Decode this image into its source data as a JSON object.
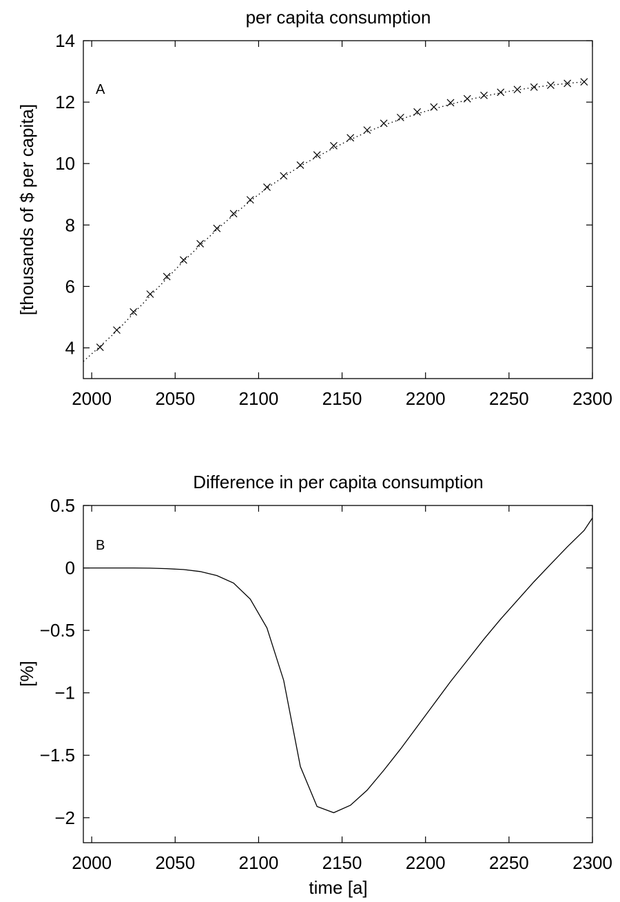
{
  "chart_data": [
    {
      "type": "scatter",
      "panel_letter": "A",
      "title": "per capita consumption",
      "xlabel": "",
      "ylabel": "[thousands of $ per capita]",
      "xlim": [
        1995,
        2300
      ],
      "ylim": [
        3,
        14
      ],
      "xticks": [
        2000,
        2050,
        2100,
        2150,
        2200,
        2250,
        2300
      ],
      "yticks": [
        4,
        6,
        8,
        10,
        12,
        14
      ],
      "grid": false,
      "series": [
        {
          "marker": "x",
          "x": [
            2005,
            2015,
            2025,
            2035,
            2045,
            2055,
            2065,
            2075,
            2085,
            2095,
            2105,
            2115,
            2125,
            2135,
            2145,
            2155,
            2165,
            2175,
            2185,
            2195,
            2205,
            2215,
            2225,
            2235,
            2245,
            2255,
            2265,
            2275,
            2285,
            2295
          ],
          "y": [
            4.02,
            4.58,
            5.17,
            5.75,
            6.32,
            6.86,
            7.39,
            7.89,
            8.37,
            8.82,
            9.23,
            9.6,
            9.95,
            10.28,
            10.58,
            10.84,
            11.09,
            11.31,
            11.5,
            11.68,
            11.84,
            11.98,
            12.11,
            12.22,
            12.32,
            12.41,
            12.49,
            12.55,
            12.61,
            12.66
          ]
        },
        {
          "line_style": "dotted",
          "x": [
            1995,
            2005,
            2015,
            2025,
            2035,
            2045,
            2055,
            2065,
            2075,
            2085,
            2095,
            2105,
            2115,
            2125,
            2135,
            2145,
            2155,
            2165,
            2175,
            2185,
            2195,
            2205,
            2215,
            2225,
            2235,
            2245,
            2255,
            2265,
            2275,
            2285,
            2295
          ],
          "y": [
            3.56,
            4.05,
            4.55,
            5.12,
            5.69,
            6.26,
            6.82,
            7.34,
            7.85,
            8.33,
            8.78,
            9.2,
            9.57,
            9.92,
            10.22,
            10.51,
            10.78,
            11.03,
            11.25,
            11.44,
            11.62,
            11.78,
            11.93,
            12.07,
            12.19,
            12.3,
            12.4,
            12.48,
            12.55,
            12.61,
            12.66
          ]
        }
      ]
    },
    {
      "type": "line",
      "panel_letter": "B",
      "title": "Difference in per capita consumption",
      "xlabel": "time [a]",
      "ylabel": "[%]",
      "xlim": [
        1995,
        2300
      ],
      "ylim": [
        -2.2,
        0.5
      ],
      "xticks": [
        2000,
        2050,
        2100,
        2150,
        2200,
        2250,
        2300
      ],
      "yticks": [
        0.5,
        0,
        -0.5,
        -1,
        -1.5,
        -2
      ],
      "ytick_labels": [
        "0.5",
        "0",
        "−0.5",
        "−1",
        "−1.5",
        "−2"
      ],
      "grid": false,
      "series": [
        {
          "x": [
            1995,
            2005,
            2015,
            2025,
            2035,
            2045,
            2055,
            2065,
            2075,
            2085,
            2095,
            2105,
            2115,
            2125,
            2135,
            2145,
            2155,
            2165,
            2175,
            2185,
            2195,
            2205,
            2215,
            2225,
            2235,
            2245,
            2255,
            2265,
            2275,
            2285,
            2295,
            2300
          ],
          "y": [
            0,
            0,
            0,
            0,
            -0.002,
            -0.006,
            -0.013,
            -0.029,
            -0.061,
            -0.121,
            -0.25,
            -0.48,
            -0.9,
            -1.59,
            -1.91,
            -1.96,
            -1.9,
            -1.78,
            -1.62,
            -1.45,
            -1.27,
            -1.09,
            -0.91,
            -0.74,
            -0.57,
            -0.41,
            -0.26,
            -0.11,
            0.03,
            0.17,
            0.3,
            0.4
          ]
        }
      ]
    }
  ]
}
